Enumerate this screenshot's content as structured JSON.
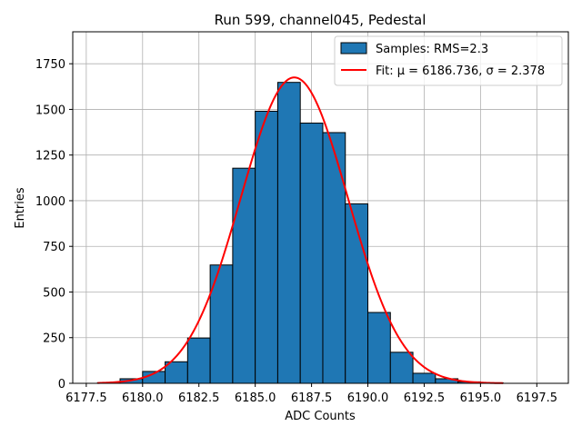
{
  "chart_data": {
    "type": "bar",
    "title": "Run 599, channel045, Pedestal",
    "xlabel": "ADC Counts",
    "ylabel": "Entries",
    "xlim": [
      6176.9,
      6198.9
    ],
    "ylim": [
      0,
      1925
    ],
    "xticks": [
      6177.5,
      6180.0,
      6182.5,
      6185.0,
      6187.5,
      6190.0,
      6192.5,
      6195.0,
      6197.5
    ],
    "xtick_labels": [
      "6177.5",
      "6180.0",
      "6182.5",
      "6185.0",
      "6187.5",
      "6190.0",
      "6192.5",
      "6195.0",
      "6197.5"
    ],
    "yticks": [
      0,
      250,
      500,
      750,
      1000,
      1250,
      1500,
      1750
    ],
    "ytick_labels": [
      "0",
      "250",
      "500",
      "750",
      "1000",
      "1250",
      "1500",
      "1750"
    ],
    "grid": true,
    "legend_position": "top-right",
    "histogram": {
      "name": "Samples: RMS=2.3",
      "color": "#1f77b4",
      "edge_color": "#000000",
      "bin_edges": [
        6178,
        6179,
        6180,
        6181,
        6182,
        6183,
        6184,
        6185,
        6186,
        6187,
        6188,
        6189,
        6190,
        6191,
        6192,
        6193,
        6194,
        6195,
        6196
      ],
      "counts": [
        3,
        25,
        65,
        118,
        248,
        648,
        1178,
        1490,
        1648,
        1425,
        1373,
        983,
        388,
        170,
        55,
        25,
        8,
        3
      ]
    },
    "fit": {
      "name": "Fit: μ = 6186.736, σ = 2.378",
      "color": "#ff0000",
      "mu": 6186.736,
      "sigma": 2.378,
      "amplitude": 1675,
      "x_range": [
        6178,
        6196
      ]
    }
  }
}
